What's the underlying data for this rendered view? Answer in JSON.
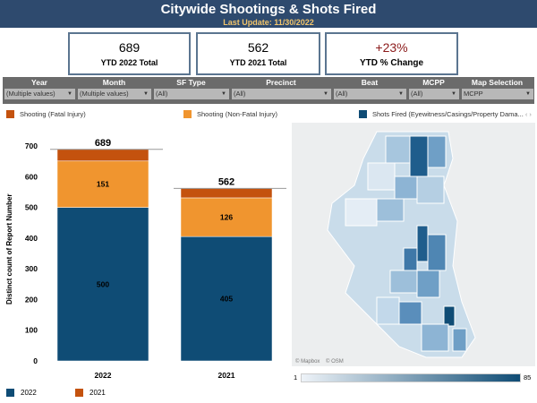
{
  "header": {
    "title": "Citywide Shootings & Shots Fired",
    "last_update": "Last Update: 11/30/2022"
  },
  "kpis": [
    {
      "value": "689",
      "label": "YTD 2022 Total"
    },
    {
      "value": "562",
      "label": "YTD 2021 Total"
    },
    {
      "value": "+23%",
      "label": "YTD % Change",
      "color": "#8b1a1a"
    }
  ],
  "filters": [
    {
      "label": "Year",
      "value": "(Multiple values)"
    },
    {
      "label": "Month",
      "value": "(Multiple values)"
    },
    {
      "label": "SF Type",
      "value": "(All)"
    },
    {
      "label": "Precinct",
      "value": "(All)"
    },
    {
      "label": "Beat",
      "value": "(All)"
    },
    {
      "label": "MCPP",
      "value": "(All)"
    },
    {
      "label": "Map Selection",
      "value": "MCPP"
    }
  ],
  "legend": [
    {
      "label": "Shooting (Fatal Injury)",
      "color": "#c4520e"
    },
    {
      "label": "Shooting (Non-Fatal Injury)",
      "color": "#f0952f"
    },
    {
      "label": "Shots Fired (Eyewitness/Casings/Property Dama...",
      "color": "#0f4c75"
    }
  ],
  "chart_data": {
    "type": "bar",
    "stacked": true,
    "categories": [
      "2022",
      "2021"
    ],
    "series": [
      {
        "name": "Shots Fired",
        "values": [
          500,
          405
        ],
        "color": "#0f4c75"
      },
      {
        "name": "Shooting (Non-Fatal Injury)",
        "values": [
          151,
          126
        ],
        "color": "#f0952f"
      },
      {
        "name": "Shooting (Fatal Injury)",
        "values": [
          38,
          31
        ],
        "color": "#c4520e"
      }
    ],
    "totals": [
      689,
      562
    ],
    "ylabel": "Distinct count of Report Number",
    "ylim": [
      0,
      700
    ],
    "yticks": [
      0,
      100,
      200,
      300,
      400,
      500,
      600,
      700
    ]
  },
  "bottom_legend": [
    {
      "label": "2022",
      "color": "#0f4c75"
    },
    {
      "label": "2021",
      "color": "#c4520e"
    }
  ],
  "map": {
    "attribution_1": "© Mapbox",
    "attribution_2": "© OSM",
    "scale_min": "1",
    "scale_max": "85"
  }
}
